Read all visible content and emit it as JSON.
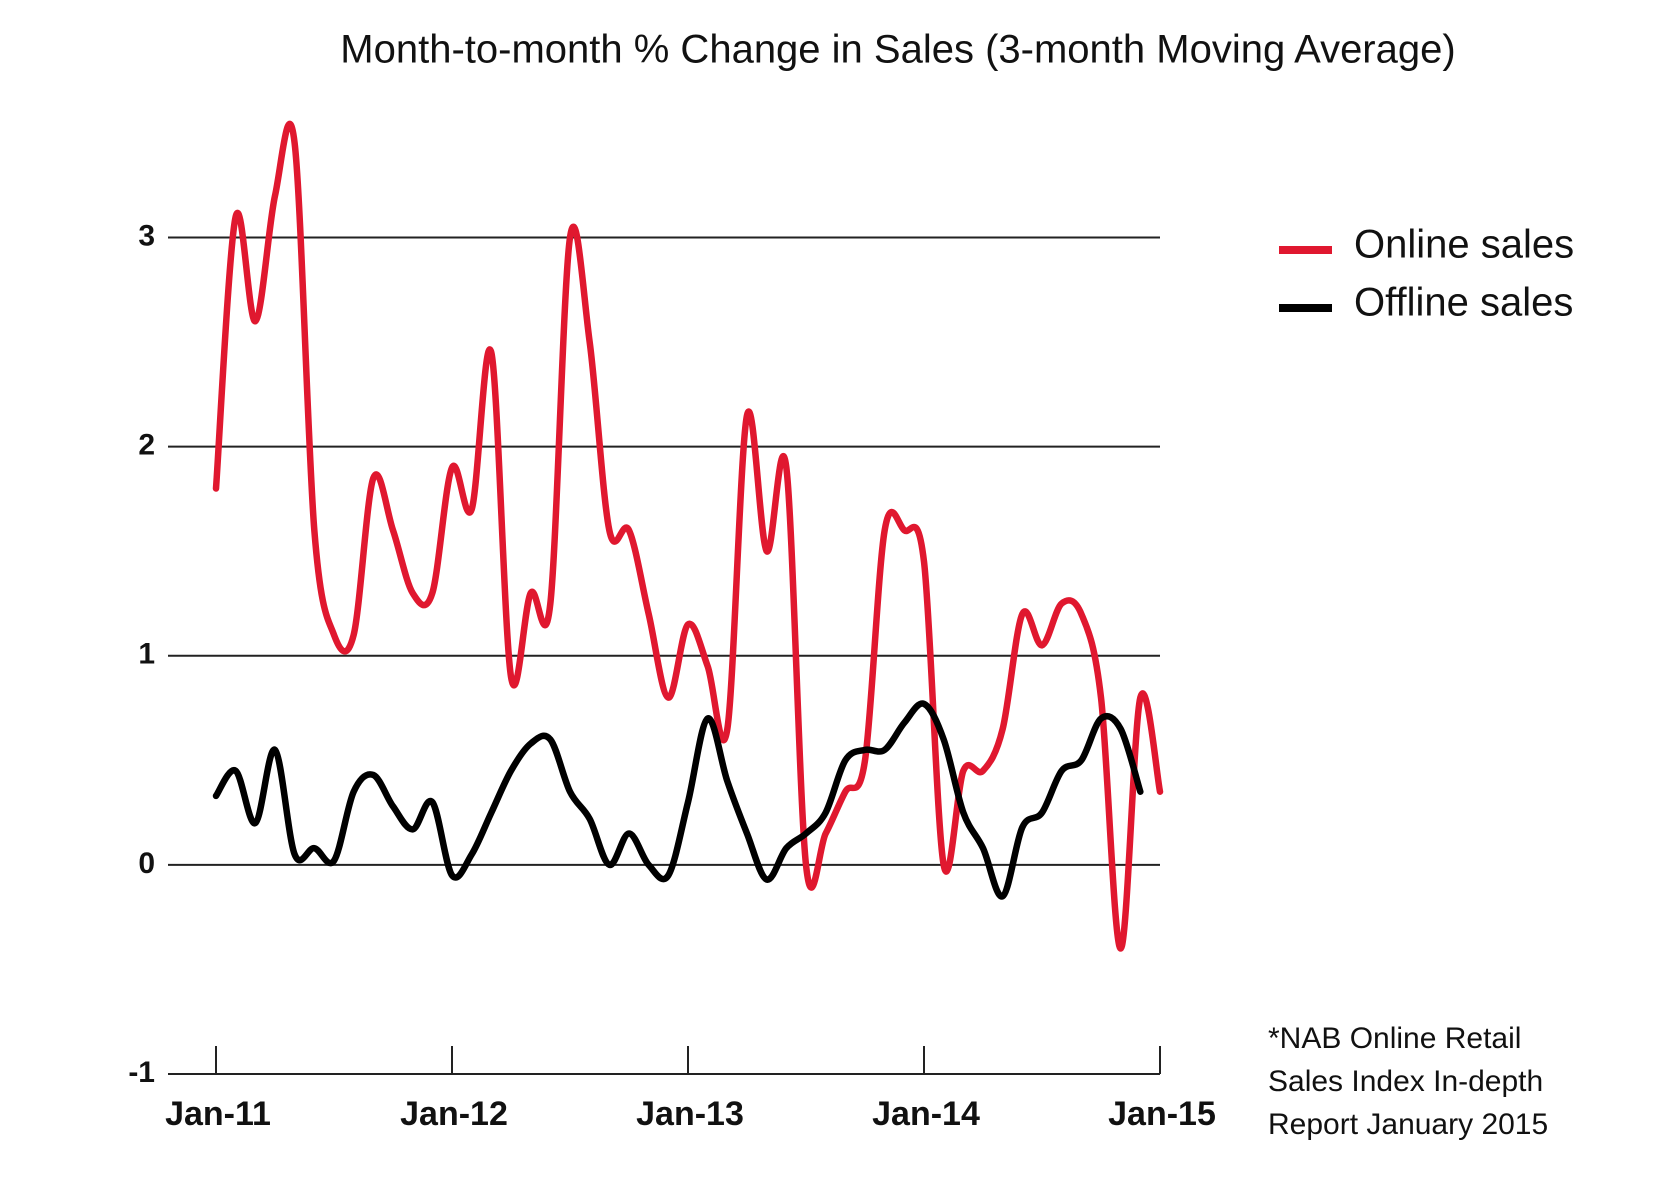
{
  "chart_data": {
    "type": "line",
    "title": "Month-to-month % Change in Sales (3-month Moving Average)",
    "categories": [
      "Jan-11",
      null,
      null,
      null,
      null,
      null,
      null,
      null,
      null,
      null,
      null,
      null,
      "Jan-12",
      null,
      null,
      null,
      null,
      null,
      null,
      null,
      null,
      null,
      null,
      null,
      "Jan-13",
      null,
      null,
      null,
      null,
      null,
      null,
      null,
      null,
      null,
      null,
      null,
      "Jan-14",
      null,
      null,
      null,
      null,
      null,
      null,
      null,
      null,
      null,
      null,
      null,
      "Jan-15"
    ],
    "series": [
      {
        "name": "Online sales",
        "color": "#e0182f",
        "values": [
          1.8,
          3.1,
          2.6,
          3.2,
          3.45,
          1.6,
          1.1,
          1.1,
          1.85,
          1.6,
          1.3,
          1.3,
          1.9,
          1.7,
          2.45,
          0.9,
          1.3,
          1.25,
          3.0,
          2.5,
          1.6,
          1.6,
          1.2,
          0.8,
          1.15,
          0.95,
          0.65,
          2.15,
          1.5,
          1.9,
          0.0,
          0.15,
          0.35,
          0.5,
          1.6,
          1.6,
          1.45,
          0.0,
          0.45,
          0.45,
          0.65,
          1.2,
          1.05,
          1.25,
          1.2,
          0.8,
          -0.4,
          0.8,
          0.35
        ]
      },
      {
        "name": "Offline sales",
        "color": "#000000",
        "values": [
          0.33,
          0.45,
          0.2,
          0.55,
          0.05,
          0.08,
          0.02,
          0.35,
          0.43,
          0.28,
          0.17,
          0.3,
          -0.05,
          0.05,
          0.25,
          0.45,
          0.58,
          0.6,
          0.35,
          0.22,
          0.0,
          0.15,
          0.0,
          -0.05,
          0.3,
          0.7,
          0.4,
          0.15,
          -0.07,
          0.08,
          0.15,
          0.25,
          0.5,
          0.55,
          0.55,
          0.68,
          0.77,
          0.6,
          0.25,
          0.08,
          -0.15,
          0.18,
          0.25,
          0.45,
          0.5,
          0.7,
          0.65,
          0.35,
          null
        ]
      }
    ],
    "ylim": [
      -1,
      3.5
    ],
    "yticks": [
      -1,
      0,
      1,
      2,
      3
    ],
    "grid": true,
    "legend": "right",
    "note": [
      "*NAB Online Retail",
      "Sales Index In-depth",
      "Report January 2015"
    ]
  }
}
